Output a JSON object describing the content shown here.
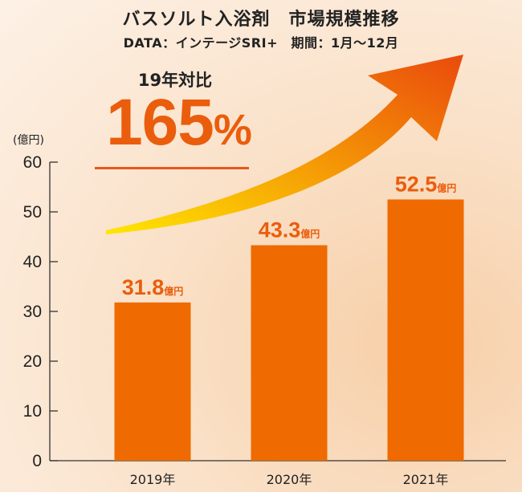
{
  "title": "バスソルト入浴剤　市場規模推移",
  "subtitle": "DATA：インテージSRI+　期間：1月〜12月",
  "growth": {
    "label": "19年対比",
    "value": "165",
    "unit": "%"
  },
  "colors": {
    "bar": "#ef6a00",
    "label": "#ea5d0c",
    "arrow_start": "#ffe600",
    "arrow_end": "#ea4a0c"
  },
  "chart_data": {
    "type": "bar",
    "categories": [
      "2019年",
      "2020年",
      "2021年"
    ],
    "values": [
      31.8,
      43.3,
      52.5
    ],
    "data_labels": [
      "31.8",
      "43.3",
      "52.5"
    ],
    "value_unit": "億円",
    "ylabel": "(億円)",
    "ylim": [
      0,
      60
    ],
    "yticks": [
      0,
      10,
      20,
      30,
      40,
      50,
      60
    ],
    "grid": false,
    "legend": "none"
  }
}
